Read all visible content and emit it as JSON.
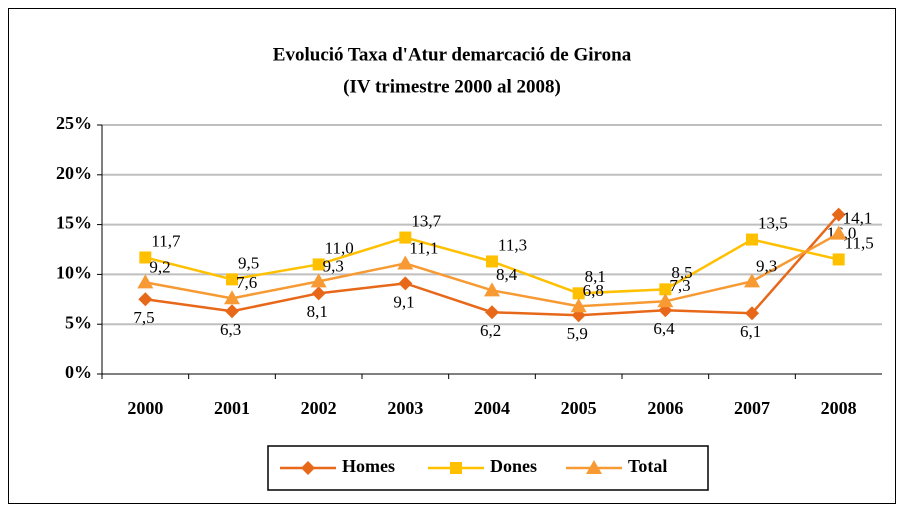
{
  "chart_data": {
    "type": "line",
    "title": "Evolució Taxa d'Atur demarcació de Girona",
    "subtitle": "(IV trimestre 2000 al 2008)",
    "categories": [
      "2000",
      "2001",
      "2002",
      "2003",
      "2004",
      "2005",
      "2006",
      "2007",
      "2008"
    ],
    "series": [
      {
        "name": "Homes",
        "color": "#e8681a",
        "marker": "diamond",
        "values": [
          7.5,
          6.3,
          8.1,
          9.1,
          6.2,
          5.9,
          6.4,
          6.1,
          16.0
        ],
        "value_labels": [
          "7,5",
          "6,3",
          "8,1",
          "9,1",
          "6,2",
          "5,9",
          "6,4",
          "6,1",
          "16,0"
        ]
      },
      {
        "name": "Dones",
        "color": "#ffc000",
        "marker": "square",
        "values": [
          11.7,
          9.5,
          11.0,
          13.7,
          11.3,
          8.1,
          8.5,
          13.5,
          11.5
        ],
        "value_labels": [
          "11,7",
          "9,5",
          "11,0",
          "13,7",
          "11,3",
          "8,1",
          "8,5",
          "13,5",
          "11,5"
        ]
      },
      {
        "name": "Total",
        "color": "#f79a33",
        "marker": "triangle",
        "values": [
          9.2,
          7.6,
          9.3,
          11.1,
          8.4,
          6.8,
          7.3,
          9.3,
          14.1
        ],
        "value_labels": [
          "9,2",
          "7,6",
          "9,3",
          "11,1",
          "8,4",
          "6,8",
          "7,3",
          "9,3",
          "14,1"
        ]
      }
    ],
    "ylim": [
      0,
      25
    ],
    "yticks": [
      {
        "value": 0,
        "label": "0%"
      },
      {
        "value": 5,
        "label": "5%"
      },
      {
        "value": 10,
        "label": "10%"
      },
      {
        "value": 15,
        "label": "15%"
      },
      {
        "value": 20,
        "label": "20%"
      },
      {
        "value": 25,
        "label": "25%"
      }
    ],
    "grid": true,
    "legend": "bottom"
  }
}
